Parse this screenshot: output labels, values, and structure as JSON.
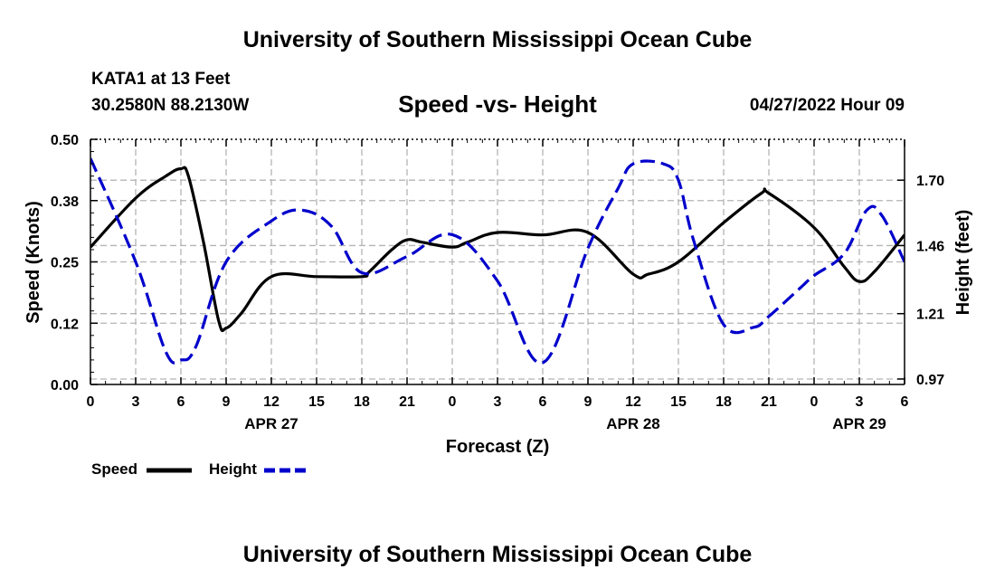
{
  "header": {
    "title": "University of Southern Mississippi Ocean Cube",
    "station": "KATA1 at 13 Feet",
    "coordinates": "30.2580N  88.2130W",
    "datetime": "04/27/2022 Hour 09"
  },
  "footer": {
    "title": "University of Southern Mississippi Ocean Cube"
  },
  "legend": {
    "speed_label": "Speed",
    "height_label": "Height"
  },
  "colors": {
    "speed": "#000000",
    "height": "#0000cc",
    "grid": "#b4b4b4"
  },
  "chart_data": {
    "type": "line",
    "title": "Speed -vs- Height",
    "xlabel": "Forecast (Z)",
    "ylabel": "Speed (Knots)",
    "y2label": "Height (feet)",
    "x_hours_range": [
      0,
      54
    ],
    "x_ticks": [
      0,
      3,
      6,
      9,
      12,
      15,
      18,
      21,
      24,
      27,
      30,
      33,
      36,
      39,
      42,
      45,
      48,
      51,
      54
    ],
    "x_tick_labels": [
      "0",
      "3",
      "6",
      "9",
      "12",
      "15",
      "18",
      "21",
      "0",
      "3",
      "6",
      "9",
      "12",
      "15",
      "18",
      "21",
      "0",
      "3",
      "6"
    ],
    "date_labels": [
      {
        "hour": 12,
        "label": "APR 27"
      },
      {
        "hour": 36,
        "label": "APR 28"
      },
      {
        "hour": 51,
        "label": "APR 29"
      }
    ],
    "ylim": [
      0,
      0.5
    ],
    "y_ticks": [
      0,
      0.125,
      0.25,
      0.375,
      0.5
    ],
    "y_tick_labels": [
      "0.00",
      "0.12",
      "0.25",
      "0.38",
      "0.50"
    ],
    "y2lim": [
      0.95,
      1.85
    ],
    "y2_ticks": [
      0.97,
      1.21,
      1.46,
      1.7
    ],
    "y2_tick_labels": [
      "0.97",
      "1.21",
      "1.46",
      "1.70"
    ],
    "grid": true,
    "series": [
      {
        "name": "Speed",
        "axis": "left",
        "style": "solid",
        "x": [
          0,
          3,
          5,
          6,
          6.5,
          7.5,
          8.5,
          9,
          10,
          12,
          15,
          18,
          18.5,
          20,
          21,
          22,
          24,
          25,
          27,
          30,
          33,
          36,
          37,
          39,
          42,
          44.5,
          45,
          48,
          50,
          51,
          52,
          54
        ],
        "y": [
          0.28,
          0.38,
          0.425,
          0.44,
          0.425,
          0.29,
          0.13,
          0.115,
          0.145,
          0.22,
          0.22,
          0.22,
          0.23,
          0.275,
          0.295,
          0.29,
          0.28,
          0.29,
          0.31,
          0.305,
          0.31,
          0.225,
          0.225,
          0.25,
          0.33,
          0.39,
          0.39,
          0.32,
          0.24,
          0.21,
          0.23,
          0.305
        ]
      },
      {
        "name": "Height",
        "axis": "right",
        "style": "dashed",
        "x": [
          0,
          3,
          5,
          6,
          7,
          9,
          12,
          14,
          16,
          18,
          21,
          24,
          27,
          30,
          33,
          35,
          36,
          38,
          39,
          40,
          42,
          44,
          45,
          47,
          48,
          50,
          51.5,
          52.5,
          54
        ],
        "y": [
          1.78,
          1.4,
          1.07,
          1.04,
          1.09,
          1.4,
          1.55,
          1.59,
          1.53,
          1.36,
          1.42,
          1.5,
          1.33,
          1.03,
          1.45,
          1.67,
          1.76,
          1.76,
          1.7,
          1.48,
          1.17,
          1.16,
          1.2,
          1.3,
          1.35,
          1.43,
          1.59,
          1.57,
          1.4
        ]
      }
    ]
  }
}
